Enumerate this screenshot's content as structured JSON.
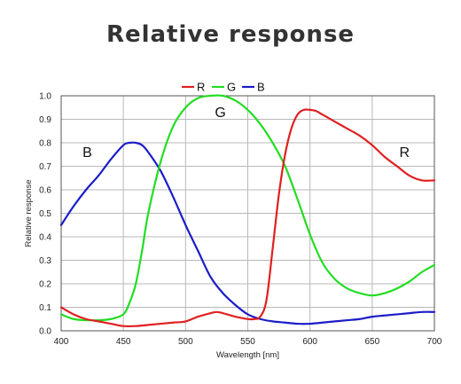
{
  "title": "Relative response",
  "chart_data": {
    "type": "line",
    "xlabel": "Wavelength [nm]",
    "ylabel": "Relative response",
    "xlim": [
      400,
      700
    ],
    "ylim": [
      0,
      1.0
    ],
    "x_ticks": [
      400,
      450,
      500,
      550,
      600,
      650,
      700
    ],
    "y_ticks": [
      0.0,
      0.1,
      0.2,
      0.3,
      0.4,
      0.5,
      0.6,
      0.7,
      0.8,
      0.9,
      1.0
    ],
    "x_tick_labels": [
      "400",
      "450",
      "500",
      "550",
      "600",
      "650",
      "700"
    ],
    "y_tick_labels": [
      "0.0",
      "0.1",
      "0.2",
      "0.3",
      "0.4",
      "0.5",
      "0.6",
      "0.7",
      "0.8",
      "0.9",
      "1.0"
    ],
    "grid": true,
    "legend_position": "top-center",
    "series": [
      {
        "name": "R",
        "color": "#e02020",
        "x": [
          400,
          410,
          420,
          430,
          440,
          450,
          460,
          470,
          480,
          490,
          500,
          510,
          520,
          525,
          530,
          540,
          550,
          555,
          560,
          565,
          570,
          575,
          580,
          585,
          590,
          595,
          600,
          605,
          610,
          620,
          630,
          640,
          650,
          660,
          670,
          680,
          690,
          700
        ],
        "y": [
          0.1,
          0.07,
          0.05,
          0.04,
          0.03,
          0.02,
          0.02,
          0.025,
          0.03,
          0.035,
          0.04,
          0.06,
          0.075,
          0.08,
          0.075,
          0.06,
          0.05,
          0.05,
          0.06,
          0.13,
          0.35,
          0.58,
          0.75,
          0.86,
          0.92,
          0.94,
          0.94,
          0.935,
          0.92,
          0.89,
          0.86,
          0.83,
          0.79,
          0.74,
          0.7,
          0.66,
          0.64,
          0.64
        ]
      },
      {
        "name": "G",
        "color": "#22dd22",
        "x": [
          400,
          410,
          420,
          430,
          440,
          450,
          455,
          460,
          465,
          470,
          480,
          490,
          500,
          510,
          520,
          530,
          540,
          550,
          560,
          570,
          580,
          590,
          600,
          610,
          620,
          630,
          640,
          650,
          660,
          670,
          680,
          690,
          700
        ],
        "y": [
          0.07,
          0.05,
          0.045,
          0.045,
          0.05,
          0.07,
          0.12,
          0.2,
          0.34,
          0.5,
          0.72,
          0.87,
          0.95,
          0.99,
          1.0,
          1.0,
          0.98,
          0.94,
          0.88,
          0.8,
          0.7,
          0.56,
          0.41,
          0.29,
          0.22,
          0.18,
          0.16,
          0.15,
          0.16,
          0.18,
          0.21,
          0.25,
          0.28
        ]
      },
      {
        "name": "B",
        "color": "#1c1cc8",
        "x": [
          400,
          410,
          420,
          430,
          440,
          450,
          455,
          460,
          465,
          470,
          480,
          490,
          500,
          510,
          520,
          530,
          540,
          550,
          560,
          570,
          580,
          590,
          600,
          610,
          620,
          630,
          640,
          650,
          660,
          670,
          680,
          690,
          700
        ],
        "y": [
          0.45,
          0.53,
          0.6,
          0.66,
          0.73,
          0.79,
          0.8,
          0.8,
          0.79,
          0.76,
          0.68,
          0.57,
          0.45,
          0.34,
          0.23,
          0.16,
          0.11,
          0.07,
          0.05,
          0.04,
          0.035,
          0.03,
          0.03,
          0.035,
          0.04,
          0.045,
          0.05,
          0.06,
          0.065,
          0.07,
          0.075,
          0.08,
          0.08
        ]
      }
    ],
    "annotations": [
      {
        "text": "B",
        "x": 421,
        "y": 0.74
      },
      {
        "text": "G",
        "x": 528,
        "y": 0.91
      },
      {
        "text": "R",
        "x": 676,
        "y": 0.74
      }
    ]
  }
}
